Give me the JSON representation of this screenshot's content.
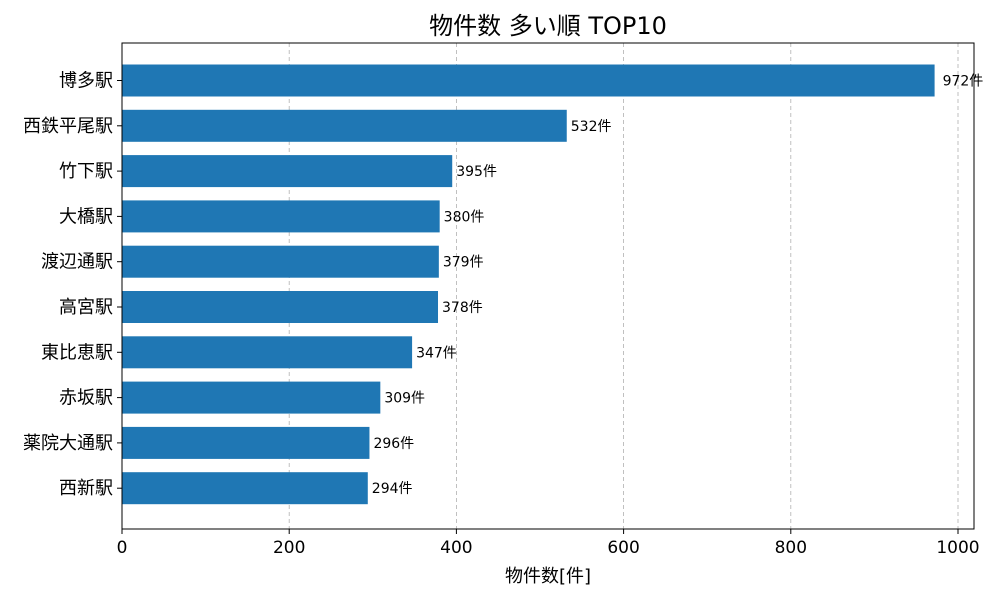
{
  "chart_data": {
    "type": "bar",
    "orientation": "horizontal",
    "title": "物件数 多い順 TOP10",
    "xlabel": "物件数[件]",
    "ylabel": "",
    "categories": [
      "博多駅",
      "西鉄平尾駅",
      "竹下駅",
      "大橋駅",
      "渡辺通駅",
      "高宮駅",
      "東比恵駅",
      "赤坂駅",
      "薬院大通駅",
      "西新駅"
    ],
    "values": [
      972,
      532,
      395,
      380,
      379,
      378,
      347,
      309,
      296,
      294
    ],
    "data_labels": [
      "972件",
      "532件",
      "395件",
      "380件",
      "379件",
      "378件",
      "347件",
      "309件",
      "296件",
      "294件"
    ],
    "xticks": [
      0,
      200,
      400,
      600,
      800,
      1000
    ],
    "xtick_labels": [
      "0",
      "200",
      "400",
      "600",
      "800",
      "1000"
    ],
    "xlim": [
      0,
      1020
    ],
    "grid": "x-dashed",
    "bar_color": "#1f77b4"
  }
}
